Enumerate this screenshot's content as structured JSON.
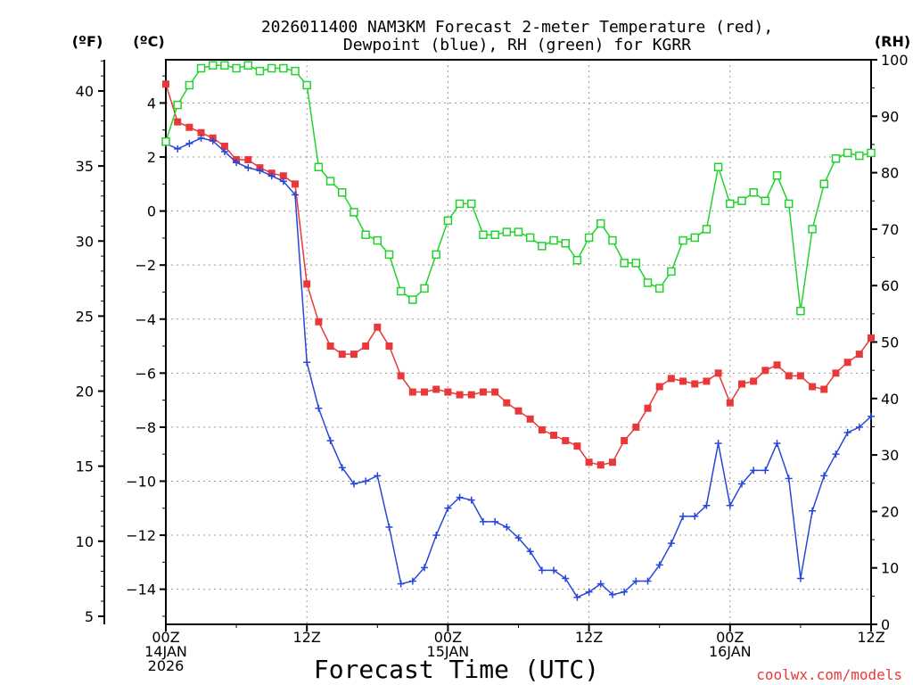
{
  "chart_data": {
    "type": "line",
    "title_line1": "2026011400 NAM3KM Forecast 2-meter Temperature (red),",
    "title_line2": "Dewpoint (blue), RH (green) for KGRR",
    "xlabel": "Forecast Time (UTC)",
    "credit": "coolwx.com/models",
    "units": {
      "left_outer": "(ºF)",
      "left_inner": "(ºC)",
      "right": "(RH)"
    },
    "x_range_hours": [
      0,
      60
    ],
    "x_ticks": [
      {
        "hour": 0,
        "lines": [
          "00Z",
          "14JAN",
          "2026"
        ]
      },
      {
        "hour": 12,
        "lines": [
          "12Z"
        ]
      },
      {
        "hour": 24,
        "lines": [
          "00Z",
          "15JAN"
        ]
      },
      {
        "hour": 36,
        "lines": [
          "12Z"
        ]
      },
      {
        "hour": 48,
        "lines": [
          "00Z",
          "16JAN"
        ]
      },
      {
        "hour": 60,
        "lines": [
          "12Z"
        ]
      }
    ],
    "celsius_axis": {
      "range": [
        -15.3,
        5.6
      ],
      "ticks": [
        "4",
        "2",
        "0",
        "−2",
        "−4",
        "−6",
        "−8",
        "−10",
        "−12",
        "−14"
      ],
      "tick_values": [
        4,
        2,
        0,
        -2,
        -4,
        -6,
        -8,
        -10,
        -12,
        -14
      ]
    },
    "fahrenheit_axis": {
      "ticks": [
        "40",
        "35",
        "30",
        "25",
        "20",
        "15",
        "10",
        "5"
      ],
      "tick_values": [
        40,
        35,
        30,
        25,
        20,
        15,
        10,
        5
      ]
    },
    "rh_axis": {
      "range": [
        0,
        100
      ],
      "ticks": [
        "100",
        "90",
        "80",
        "70",
        "60",
        "50",
        "40",
        "30",
        "20",
        "10",
        "0"
      ],
      "tick_values": [
        100,
        90,
        80,
        70,
        60,
        50,
        40,
        30,
        20,
        10,
        0
      ]
    },
    "series": [
      {
        "name": "Temperature (C)",
        "color": "#e8383a",
        "marker": "filled-square",
        "x": [
          0,
          1,
          2,
          3,
          4,
          5,
          6,
          7,
          8,
          9,
          10,
          11,
          12,
          13,
          14,
          15,
          16,
          17,
          18,
          19,
          20,
          21,
          22,
          23,
          24,
          25,
          26,
          27,
          28,
          29,
          30,
          31,
          32,
          33,
          34,
          35,
          36,
          37,
          38,
          39,
          40,
          41,
          42,
          43,
          44,
          45,
          46,
          47,
          48,
          49,
          50,
          51,
          52,
          53,
          54,
          55,
          56,
          57,
          58,
          59,
          60
        ],
        "values": [
          4.7,
          3.3,
          3.1,
          2.9,
          2.7,
          2.4,
          1.9,
          1.9,
          1.6,
          1.4,
          1.3,
          1.0,
          -2.7,
          -4.1,
          -5.0,
          -5.3,
          -5.3,
          -5.0,
          -4.3,
          -5.0,
          -6.1,
          -6.7,
          -6.7,
          -6.6,
          -6.7,
          -6.8,
          -6.8,
          -6.7,
          -6.7,
          -7.1,
          -7.4,
          -7.7,
          -8.1,
          -8.3,
          -8.5,
          -8.7,
          -9.3,
          -9.4,
          -9.3,
          -8.5,
          -8.0,
          -7.3,
          -6.5,
          -6.2,
          -6.3,
          -6.4,
          -6.3,
          -6.0,
          -7.1,
          -6.4,
          -6.3,
          -5.9,
          -5.7,
          -6.1,
          -6.1,
          -6.5,
          -6.6,
          -6.0,
          -5.6,
          -5.3,
          -4.7
        ]
      },
      {
        "name": "Dewpoint (C)",
        "color": "#2846d8",
        "marker": "plus",
        "x": [
          0,
          1,
          2,
          3,
          4,
          5,
          6,
          7,
          8,
          9,
          10,
          11,
          12,
          13,
          14,
          15,
          16,
          17,
          18,
          19,
          20,
          21,
          22,
          23,
          24,
          25,
          26,
          27,
          28,
          29,
          30,
          31,
          32,
          33,
          34,
          35,
          36,
          37,
          38,
          39,
          40,
          41,
          42,
          43,
          44,
          45,
          46,
          47,
          48,
          49,
          50,
          51,
          52,
          53,
          54,
          55,
          56,
          57,
          58,
          59,
          60
        ],
        "values": [
          2.5,
          2.3,
          2.5,
          2.7,
          2.6,
          2.2,
          1.8,
          1.6,
          1.5,
          1.3,
          1.1,
          0.6,
          -5.6,
          -7.3,
          -8.5,
          -9.5,
          -10.1,
          -10.0,
          -9.8,
          -11.7,
          -13.8,
          -13.7,
          -13.2,
          -12.0,
          -11.0,
          -10.6,
          -10.7,
          -11.5,
          -11.5,
          -11.7,
          -12.1,
          -12.6,
          -13.3,
          -13.3,
          -13.6,
          -14.3,
          -14.1,
          -13.8,
          -14.2,
          -14.1,
          -13.7,
          -13.7,
          -13.1,
          -12.3,
          -11.3,
          -11.3,
          -10.9,
          -8.6,
          -10.9,
          -10.1,
          -9.6,
          -9.6,
          -8.6,
          -9.9,
          -13.6,
          -11.1,
          -9.8,
          -9.0,
          -8.2,
          -8.0,
          -7.6
        ]
      },
      {
        "name": "RH (%)",
        "color": "#22d22e",
        "marker": "open-square",
        "x": [
          0,
          1,
          2,
          3,
          4,
          5,
          6,
          7,
          8,
          9,
          10,
          11,
          12,
          13,
          14,
          15,
          16,
          17,
          18,
          19,
          20,
          21,
          22,
          23,
          24,
          25,
          26,
          27,
          28,
          29,
          30,
          31,
          32,
          33,
          34,
          35,
          36,
          37,
          38,
          39,
          40,
          41,
          42,
          43,
          44,
          45,
          46,
          47,
          48,
          49,
          50,
          51,
          52,
          53,
          54,
          55,
          56,
          57,
          58,
          59,
          60
        ],
        "values": [
          85.5,
          92.0,
          95.5,
          98.5,
          99.0,
          99.0,
          98.5,
          99.0,
          98.0,
          98.5,
          98.5,
          98.0,
          95.5,
          81.0,
          78.5,
          76.5,
          73.0,
          69.0,
          68.0,
          65.5,
          59.0,
          57.5,
          59.5,
          65.5,
          71.5,
          74.5,
          74.5,
          69.0,
          69.0,
          69.5,
          69.5,
          68.5,
          67.0,
          68.0,
          67.5,
          64.5,
          68.5,
          71.0,
          68.0,
          64.0,
          64.0,
          60.5,
          59.5,
          62.5,
          68.0,
          68.5,
          70.0,
          81.0,
          74.5,
          75.0,
          76.5,
          75.0,
          79.5,
          74.5,
          55.5,
          70.0,
          78.0,
          82.5,
          83.5,
          83.0,
          83.5
        ]
      }
    ]
  }
}
